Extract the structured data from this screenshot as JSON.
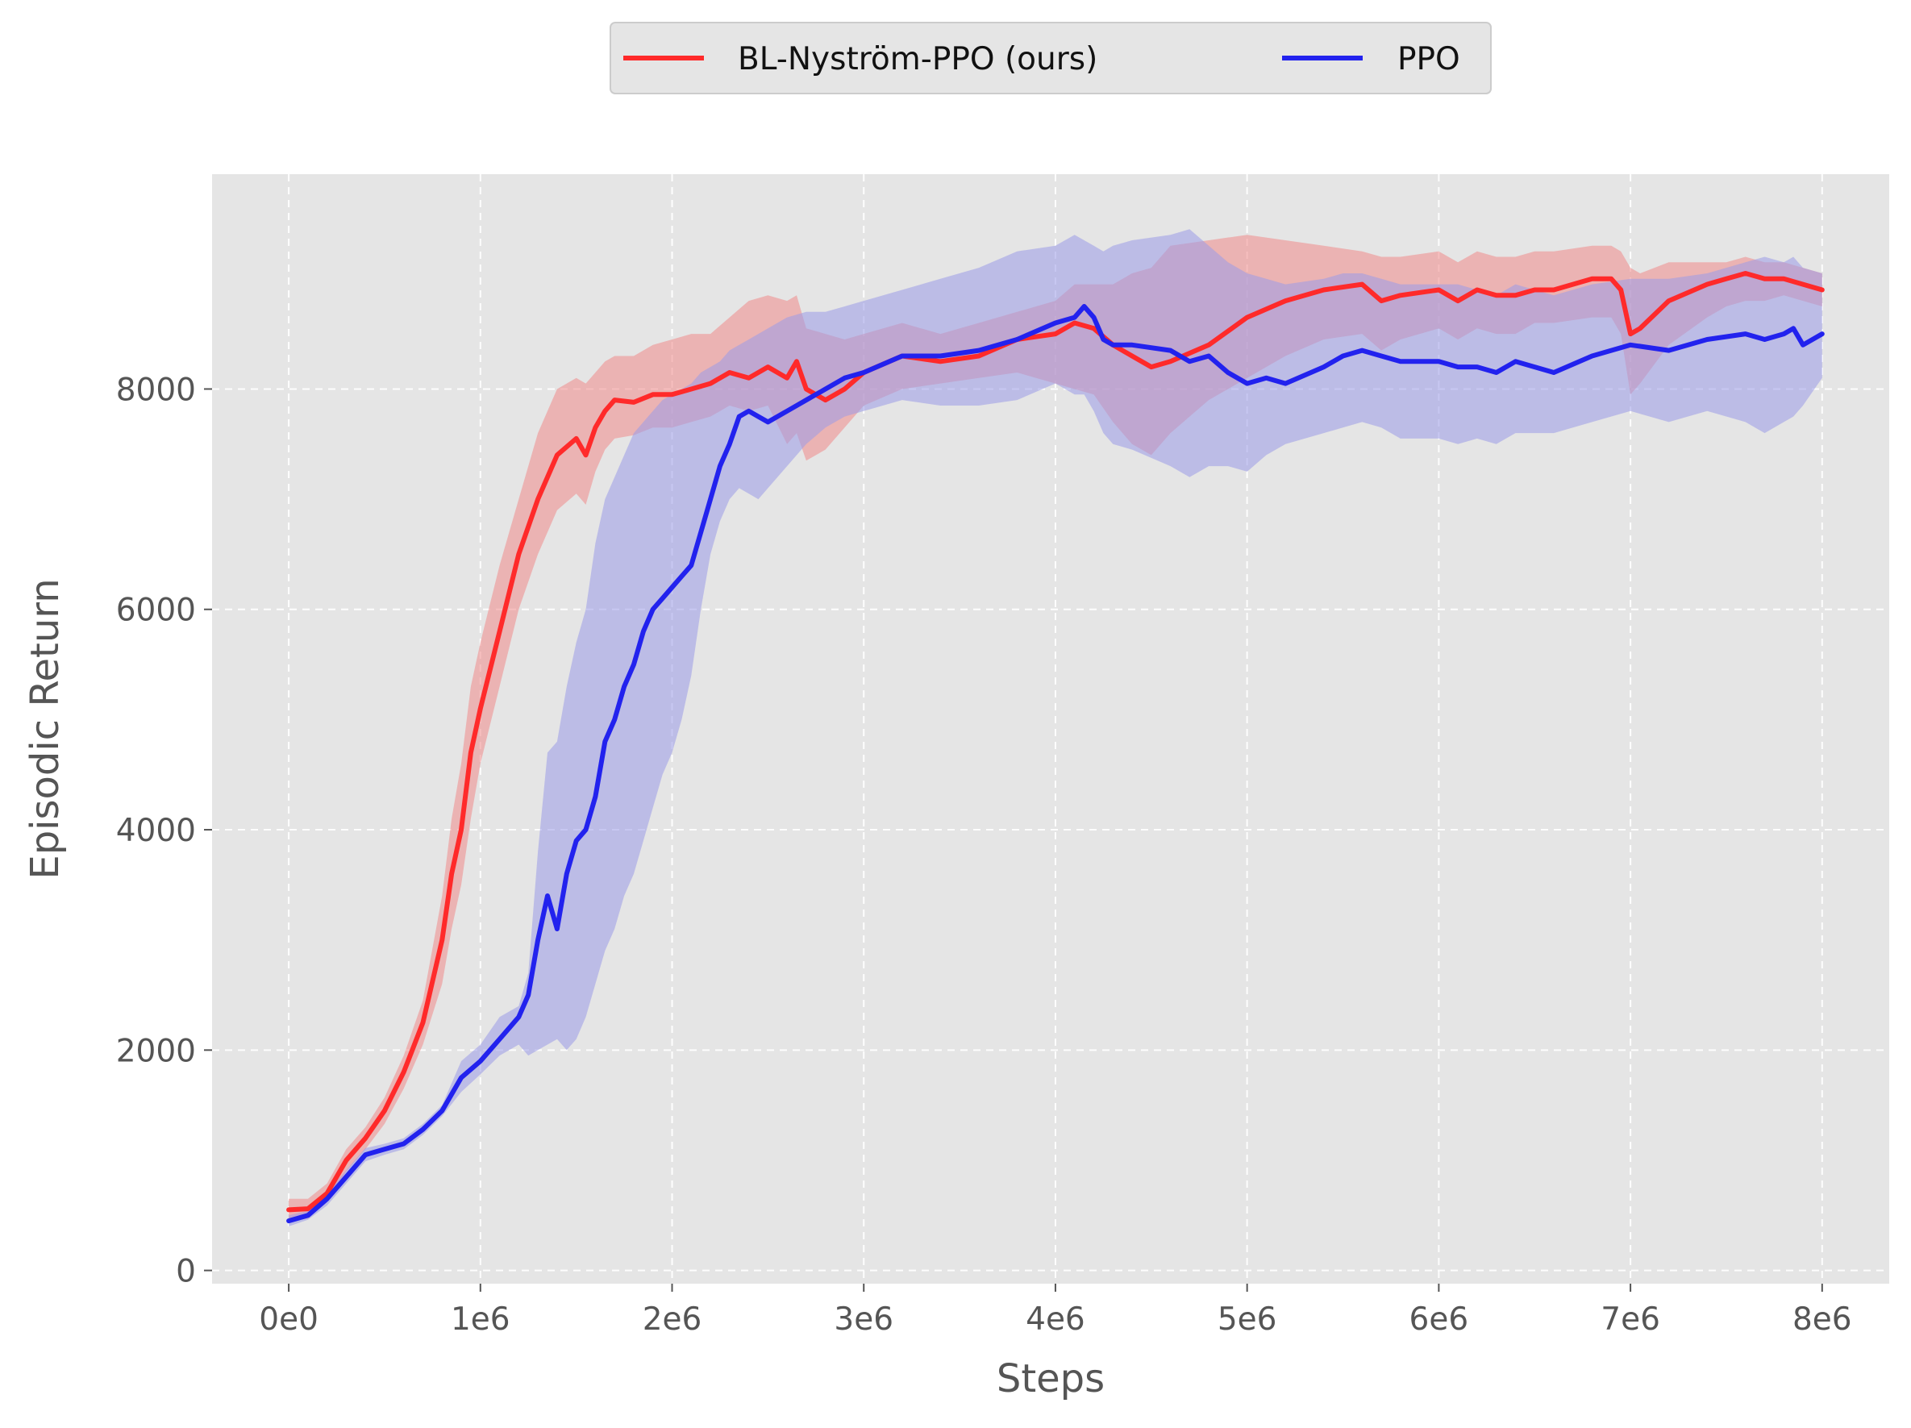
{
  "chart_data": {
    "type": "line",
    "xlabel": "Steps",
    "ylabel": "Episodic Return",
    "xlim": [
      -400000,
      8350000
    ],
    "ylim": [
      -120,
      9950
    ],
    "x_ticks": [
      0,
      1000000,
      2000000,
      3000000,
      4000000,
      5000000,
      6000000,
      7000000,
      8000000
    ],
    "x_tick_labels": [
      "0e0",
      "1e6",
      "2e6",
      "3e6",
      "4e6",
      "5e6",
      "6e6",
      "7e6",
      "8e6"
    ],
    "y_ticks": [
      0,
      2000,
      4000,
      6000,
      8000
    ],
    "y_tick_labels": [
      "0",
      "2000",
      "4000",
      "6000",
      "8000"
    ],
    "grid": true,
    "legend_position": "top-center",
    "series": [
      {
        "name": "BL-Nyström-PPO (ours)",
        "color": "#ff2a2a",
        "band_color": "#f08a8a",
        "x": [
          0,
          100000,
          200000,
          300000,
          400000,
          500000,
          600000,
          700000,
          800000,
          850000,
          900000,
          950000,
          1000000,
          1100000,
          1200000,
          1300000,
          1400000,
          1500000,
          1550000,
          1600000,
          1650000,
          1700000,
          1800000,
          1900000,
          2000000,
          2100000,
          2200000,
          2300000,
          2400000,
          2500000,
          2600000,
          2650000,
          2700000,
          2800000,
          2900000,
          3000000,
          3200000,
          3400000,
          3600000,
          3800000,
          4000000,
          4100000,
          4200000,
          4300000,
          4400000,
          4500000,
          4600000,
          4800000,
          5000000,
          5200000,
          5400000,
          5600000,
          5700000,
          5800000,
          6000000,
          6100000,
          6200000,
          6300000,
          6400000,
          6500000,
          6600000,
          6800000,
          6900000,
          6950000,
          7000000,
          7050000,
          7200000,
          7400000,
          7500000,
          7600000,
          7700000,
          7800000,
          7900000,
          8000000
        ],
        "mean": [
          550,
          560,
          700,
          1000,
          1200,
          1450,
          1800,
          2250,
          3000,
          3600,
          4000,
          4700,
          5100,
          5800,
          6500,
          7000,
          7400,
          7550,
          7400,
          7650,
          7800,
          7900,
          7880,
          7950,
          7950,
          8000,
          8050,
          8150,
          8100,
          8200,
          8100,
          8250,
          8000,
          7900,
          8000,
          8150,
          8300,
          8250,
          8300,
          8450,
          8500,
          8600,
          8550,
          8400,
          8300,
          8200,
          8250,
          8400,
          8650,
          8800,
          8900,
          8950,
          8800,
          8850,
          8900,
          8800,
          8900,
          8850,
          8850,
          8900,
          8900,
          9000,
          9000,
          8900,
          8500,
          8550,
          8800,
          8950,
          9000,
          9050,
          9000,
          9000,
          8950,
          8900
        ],
        "lower": [
          450,
          470,
          620,
          900,
          1100,
          1330,
          1650,
          2050,
          2600,
          3100,
          3500,
          4100,
          4600,
          5300,
          6000,
          6500,
          6900,
          7050,
          6950,
          7250,
          7450,
          7550,
          7580,
          7650,
          7650,
          7700,
          7750,
          7850,
          7800,
          7850,
          7500,
          7600,
          7350,
          7450,
          7650,
          7850,
          8000,
          8050,
          8100,
          8150,
          8050,
          8000,
          7950,
          7700,
          7500,
          7400,
          7600,
          7900,
          8100,
          8300,
          8450,
          8500,
          8350,
          8450,
          8550,
          8450,
          8550,
          8500,
          8500,
          8600,
          8600,
          8650,
          8650,
          8500,
          7950,
          8050,
          8400,
          8650,
          8750,
          8800,
          8800,
          8850,
          8800,
          8750
        ],
        "upper": [
          650,
          650,
          790,
          1100,
          1300,
          1570,
          1950,
          2450,
          3400,
          4100,
          4600,
          5300,
          5700,
          6400,
          7000,
          7600,
          8000,
          8100,
          8050,
          8150,
          8250,
          8300,
          8300,
          8400,
          8450,
          8500,
          8500,
          8650,
          8800,
          8850,
          8800,
          8850,
          8550,
          8500,
          8450,
          8500,
          8600,
          8500,
          8600,
          8700,
          8800,
          8950,
          8950,
          8950,
          9050,
          9100,
          9300,
          9350,
          9400,
          9350,
          9300,
          9250,
          9200,
          9200,
          9250,
          9150,
          9250,
          9200,
          9200,
          9250,
          9250,
          9300,
          9300,
          9250,
          9100,
          9050,
          9150,
          9150,
          9150,
          9200,
          9150,
          9150,
          9100,
          9050
        ]
      },
      {
        "name": "PPO",
        "color": "#2222ee",
        "band_color": "#9a9ae8",
        "x": [
          0,
          100000,
          200000,
          300000,
          400000,
          500000,
          600000,
          700000,
          800000,
          900000,
          1000000,
          1100000,
          1200000,
          1250000,
          1300000,
          1350000,
          1400000,
          1450000,
          1500000,
          1550000,
          1600000,
          1650000,
          1700000,
          1750000,
          1800000,
          1850000,
          1900000,
          1950000,
          2000000,
          2050000,
          2100000,
          2150000,
          2200000,
          2250000,
          2300000,
          2350000,
          2400000,
          2450000,
          2500000,
          2600000,
          2700000,
          2800000,
          2900000,
          3000000,
          3200000,
          3400000,
          3600000,
          3800000,
          4000000,
          4100000,
          4150000,
          4200000,
          4250000,
          4300000,
          4400000,
          4600000,
          4700000,
          4800000,
          4900000,
          5000000,
          5100000,
          5200000,
          5400000,
          5500000,
          5600000,
          5700000,
          5800000,
          6000000,
          6100000,
          6200000,
          6300000,
          6400000,
          6500000,
          6600000,
          6800000,
          7000000,
          7200000,
          7400000,
          7600000,
          7700000,
          7800000,
          7850000,
          7900000,
          8000000
        ],
        "mean": [
          450,
          500,
          650,
          850,
          1050,
          1100,
          1150,
          1280,
          1450,
          1750,
          1900,
          2100,
          2300,
          2500,
          3000,
          3400,
          3100,
          3600,
          3900,
          4000,
          4300,
          4800,
          5000,
          5300,
          5500,
          5800,
          6000,
          6100,
          6200,
          6300,
          6400,
          6700,
          7000,
          7300,
          7500,
          7750,
          7800,
          7750,
          7700,
          7800,
          7900,
          8000,
          8100,
          8150,
          8300,
          8300,
          8350,
          8450,
          8600,
          8650,
          8750,
          8650,
          8450,
          8400,
          8400,
          8350,
          8250,
          8300,
          8150,
          8050,
          8100,
          8050,
          8200,
          8300,
          8350,
          8300,
          8250,
          8250,
          8200,
          8200,
          8150,
          8250,
          8200,
          8150,
          8300,
          8400,
          8350,
          8450,
          8500,
          8450,
          8500,
          8550,
          8400,
          8500
        ],
        "lower": [
          400,
          460,
          590,
          790,
          990,
          1050,
          1100,
          1230,
          1400,
          1620,
          1780,
          1950,
          2050,
          1950,
          2000,
          2050,
          2100,
          2000,
          2100,
          2300,
          2600,
          2900,
          3100,
          3400,
          3600,
          3900,
          4200,
          4500,
          4700,
          5000,
          5400,
          6000,
          6500,
          6800,
          7000,
          7100,
          7050,
          7000,
          7100,
          7300,
          7500,
          7650,
          7750,
          7800,
          7900,
          7850,
          7850,
          7900,
          8050,
          7950,
          7950,
          7800,
          7600,
          7500,
          7450,
          7300,
          7200,
          7300,
          7300,
          7250,
          7400,
          7500,
          7600,
          7650,
          7700,
          7650,
          7550,
          7550,
          7500,
          7550,
          7500,
          7600,
          7600,
          7600,
          7700,
          7800,
          7700,
          7800,
          7700,
          7600,
          7700,
          7750,
          7850,
          8100
        ],
        "upper": [
          500,
          540,
          710,
          910,
          1110,
          1150,
          1200,
          1330,
          1500,
          1900,
          2050,
          2300,
          2400,
          2700,
          3800,
          4700,
          4800,
          5300,
          5700,
          6000,
          6600,
          7000,
          7200,
          7400,
          7600,
          7700,
          7800,
          7900,
          7950,
          8000,
          8050,
          8150,
          8200,
          8250,
          8350,
          8400,
          8450,
          8500,
          8550,
          8650,
          8700,
          8700,
          8750,
          8800,
          8900,
          9000,
          9100,
          9250,
          9300,
          9400,
          9350,
          9300,
          9250,
          9300,
          9350,
          9400,
          9450,
          9300,
          9150,
          9050,
          9000,
          8950,
          9000,
          9050,
          9050,
          9000,
          8950,
          8950,
          8950,
          8900,
          8850,
          8950,
          8900,
          8850,
          8950,
          9000,
          9000,
          9050,
          9150,
          9200,
          9150,
          9200,
          9100,
          9050
        ]
      }
    ]
  }
}
